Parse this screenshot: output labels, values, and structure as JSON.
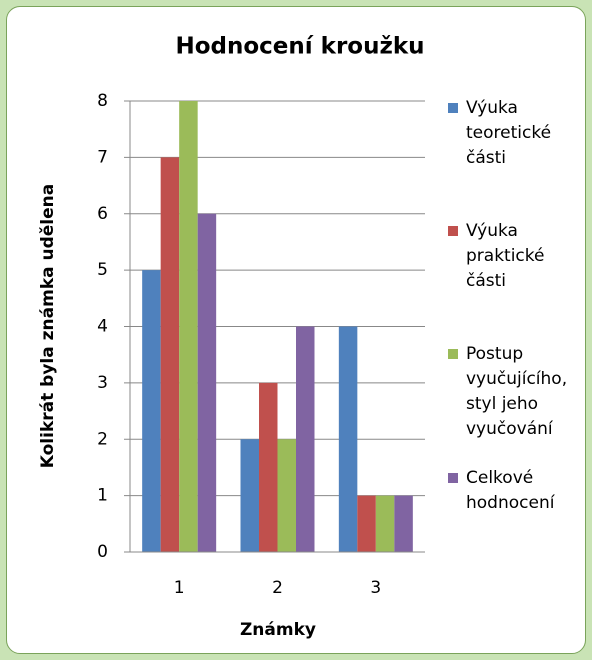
{
  "chart_data": {
    "type": "bar",
    "title": "Hodnocení kroužku",
    "x_label": "Známky",
    "y_label": "Kolikrát byla známka udělena",
    "categories": [
      "1",
      "2",
      "3"
    ],
    "series": [
      {
        "name": "Výuka teoretické části",
        "color": "#4f81bd",
        "values": [
          5,
          2,
          4
        ]
      },
      {
        "name": "Výuka praktické části",
        "color": "#c0504d",
        "values": [
          7,
          3,
          1
        ]
      },
      {
        "name": "Postup vyučujícího, styl jeho vyučování",
        "color": "#9bbb59",
        "values": [
          8,
          2,
          1
        ]
      },
      {
        "name": "Celkové hodnocení",
        "color": "#8064a2",
        "values": [
          6,
          4,
          1
        ]
      }
    ],
    "ylim": [
      0,
      8
    ],
    "yticks": [
      0,
      1,
      2,
      3,
      4,
      5,
      6,
      7,
      8
    ],
    "grid": true,
    "legend": "right"
  }
}
